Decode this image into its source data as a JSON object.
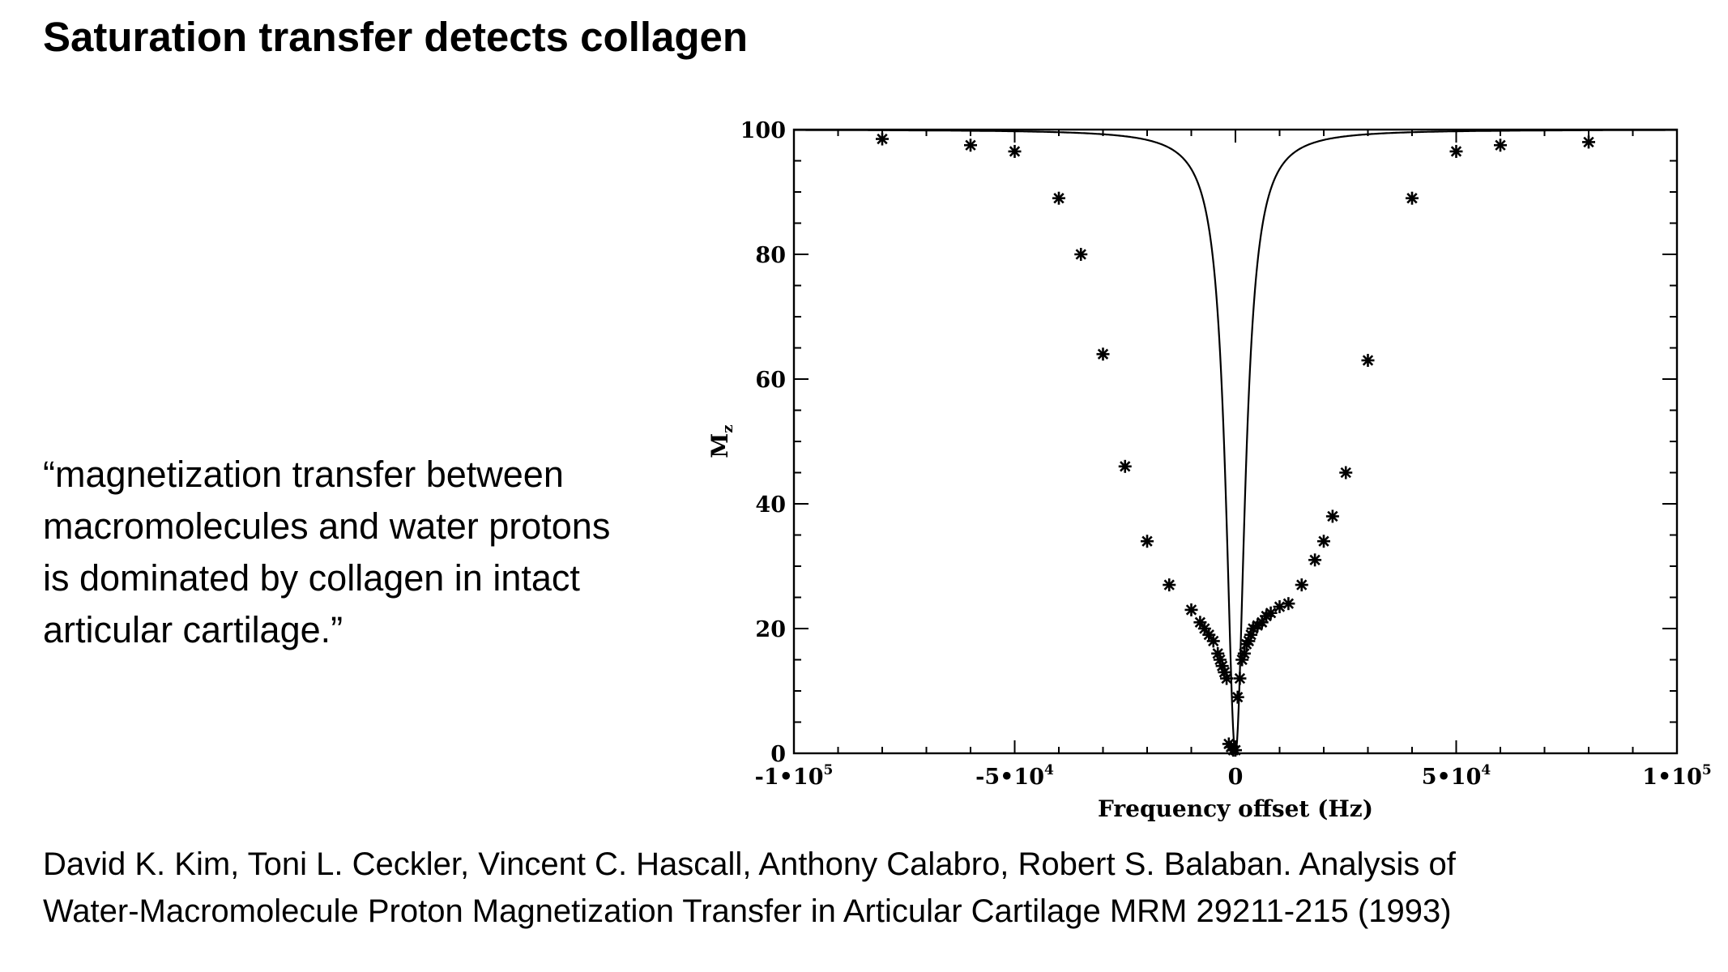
{
  "title": "Saturation transfer detects collagen",
  "quote_lines": [
    "“magnetization transfer between",
    "macromolecules and water protons",
    "is dominated by collagen in intact",
    "articular cartilage.”"
  ],
  "citation_lines": [
    "David K. Kim, Toni L. Ceckler, Vincent C. Hascall, Anthony Calabro, Robert S. Balaban. Analysis of",
    "Water-Macromolecule Proton Magnetization Transfer in Articular Cartilage MRM 29211-215 (1993)"
  ],
  "chart_data": {
    "type": "scatter",
    "xlabel": "Frequency offset (Hz)",
    "ylabel": "M",
    "ylabel_subscript": "z",
    "xlim": [
      -100000,
      100000
    ],
    "ylim": [
      0,
      100
    ],
    "x_ticks": [
      {
        "value": -100000,
        "label": "-1•10",
        "exp": "5"
      },
      {
        "value": -50000,
        "label": "-5•10",
        "exp": "4"
      },
      {
        "value": 0,
        "label": "0",
        "exp": ""
      },
      {
        "value": 50000,
        "label": "5•10",
        "exp": "4"
      },
      {
        "value": 100000,
        "label": "1•10",
        "exp": "5"
      }
    ],
    "y_ticks": [
      {
        "value": 0,
        "label": "0"
      },
      {
        "value": 20,
        "label": "20"
      },
      {
        "value": 40,
        "label": "40"
      },
      {
        "value": 60,
        "label": "60"
      },
      {
        "value": 80,
        "label": "80"
      },
      {
        "value": 100,
        "label": "100"
      }
    ],
    "grid": false,
    "series": [
      {
        "kind": "points",
        "marker": "asterisk",
        "x": [
          -80000,
          -60000,
          -50000,
          -40000,
          -35000,
          -30000,
          -25000,
          -20000,
          -15000,
          -10000,
          -8000,
          -7000,
          -6000,
          -5000,
          -4000,
          -3500,
          -3000,
          -2500,
          -2000,
          -1500,
          -1000,
          -500,
          0,
          500,
          1000,
          1500,
          2000,
          2500,
          3000,
          3500,
          4000,
          5000,
          6000,
          7000,
          8000,
          10000,
          12000,
          15000,
          18000,
          20000,
          22000,
          25000,
          30000,
          40000,
          50000,
          60000,
          80000
        ],
        "y": [
          98.5,
          97.5,
          96.5,
          89,
          80,
          64,
          46,
          34,
          27,
          23,
          21,
          20,
          19,
          18,
          16,
          15,
          14,
          13,
          12,
          1.5,
          1,
          0.5,
          0.5,
          9,
          12,
          15,
          16,
          17.5,
          18,
          19,
          20,
          20.5,
          21,
          22,
          22.5,
          23.5,
          24,
          27,
          31,
          34,
          38,
          45,
          63,
          89,
          96.5,
          97.5,
          98
        ]
      },
      {
        "kind": "curve",
        "model": "lorentzian",
        "baseline": 100,
        "depth": 100,
        "half_width_hz": 2600
      }
    ]
  }
}
